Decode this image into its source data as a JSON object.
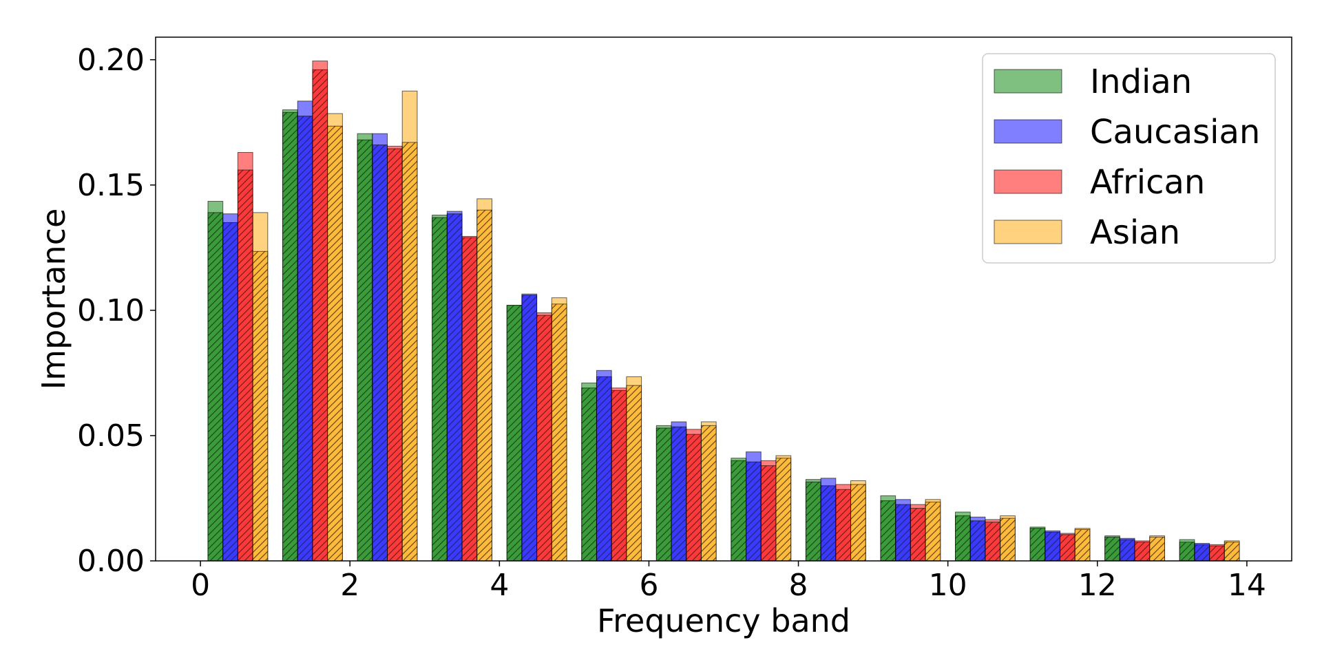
{
  "chart_data": {
    "type": "bar",
    "title": "",
    "xlabel": "Frequency band",
    "ylabel": "Importance",
    "xlim": [
      -0.6,
      14.6
    ],
    "ylim": [
      0,
      0.209
    ],
    "xticks": [
      "0",
      "2",
      "4",
      "6",
      "8",
      "10",
      "12",
      "14"
    ],
    "yticks": [
      "0.00",
      "0.05",
      "0.10",
      "0.15",
      "0.20"
    ],
    "grid": false,
    "legend_position": "top-right",
    "bands": [
      0,
      1,
      2,
      3,
      4,
      5,
      6,
      7,
      8,
      9,
      10,
      11,
      12,
      13
    ],
    "series": [
      {
        "name": "Indian",
        "color": "#008000",
        "values": [
          0.1435,
          0.18,
          0.1705,
          0.138,
          0.102,
          0.071,
          0.054,
          0.041,
          0.0325,
          0.026,
          0.0195,
          0.0135,
          0.01,
          0.0085
        ],
        "hatched_values": [
          0.139,
          0.179,
          0.168,
          0.137,
          0.102,
          0.069,
          0.053,
          0.04,
          0.0315,
          0.024,
          0.018,
          0.013,
          0.0095,
          0.0075
        ]
      },
      {
        "name": "Caucasian",
        "color": "#0000ff",
        "values": [
          0.1385,
          0.1835,
          0.1705,
          0.1395,
          0.1065,
          0.076,
          0.0555,
          0.0435,
          0.033,
          0.0245,
          0.0175,
          0.012,
          0.009,
          0.007
        ],
        "hatched_values": [
          0.135,
          0.1775,
          0.166,
          0.1385,
          0.106,
          0.0735,
          0.0535,
          0.0395,
          0.03,
          0.0225,
          0.016,
          0.0115,
          0.0085,
          0.0065
        ]
      },
      {
        "name": "African",
        "color": "#ff0000",
        "values": [
          0.163,
          0.1995,
          0.1655,
          0.1295,
          0.099,
          0.069,
          0.0525,
          0.04,
          0.0305,
          0.0225,
          0.0165,
          0.011,
          0.008,
          0.0065
        ],
        "hatched_values": [
          0.156,
          0.196,
          0.1645,
          0.129,
          0.098,
          0.068,
          0.0505,
          0.038,
          0.0285,
          0.021,
          0.0155,
          0.0105,
          0.0075,
          0.006
        ]
      },
      {
        "name": "Asian",
        "color": "#ffa500",
        "values": [
          0.139,
          0.1785,
          0.1875,
          0.1445,
          0.105,
          0.0735,
          0.0555,
          0.042,
          0.032,
          0.0245,
          0.018,
          0.013,
          0.01,
          0.008
        ],
        "hatched_values": [
          0.1235,
          0.1735,
          0.167,
          0.14,
          0.1025,
          0.07,
          0.054,
          0.041,
          0.0305,
          0.0235,
          0.017,
          0.0125,
          0.0095,
          0.0075
        ]
      }
    ]
  }
}
